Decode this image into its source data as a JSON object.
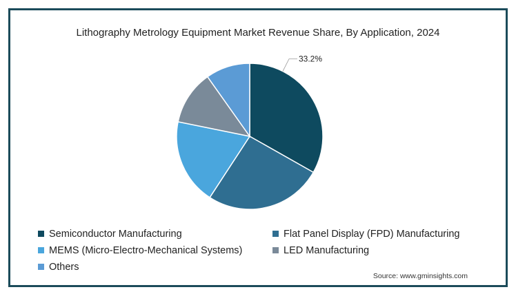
{
  "chart_data": {
    "type": "pie",
    "title": "Lithography Metrology Equipment Market Revenue Share, By Application, 2024",
    "slices": [
      {
        "name": "Semiconductor Manufacturing",
        "value": 33.2,
        "color": "#0e4a5f"
      },
      {
        "name": "Flat Panel Display (FPD) Manufacturing",
        "value": 26.0,
        "color": "#2f6e91"
      },
      {
        "name": "MEMS (Micro-Electro-Mechanical Systems)",
        "value": 19.0,
        "color": "#4aa6dd"
      },
      {
        "name": "LED Manufacturing",
        "value": 12.0,
        "color": "#7a8a99"
      },
      {
        "name": "Others",
        "value": 9.8,
        "color": "#5b9bd5"
      }
    ],
    "labels": [
      {
        "slice": 0,
        "text": "33.2%"
      }
    ],
    "legend_position": "bottom"
  },
  "source": "Source: www.gminsights.com"
}
